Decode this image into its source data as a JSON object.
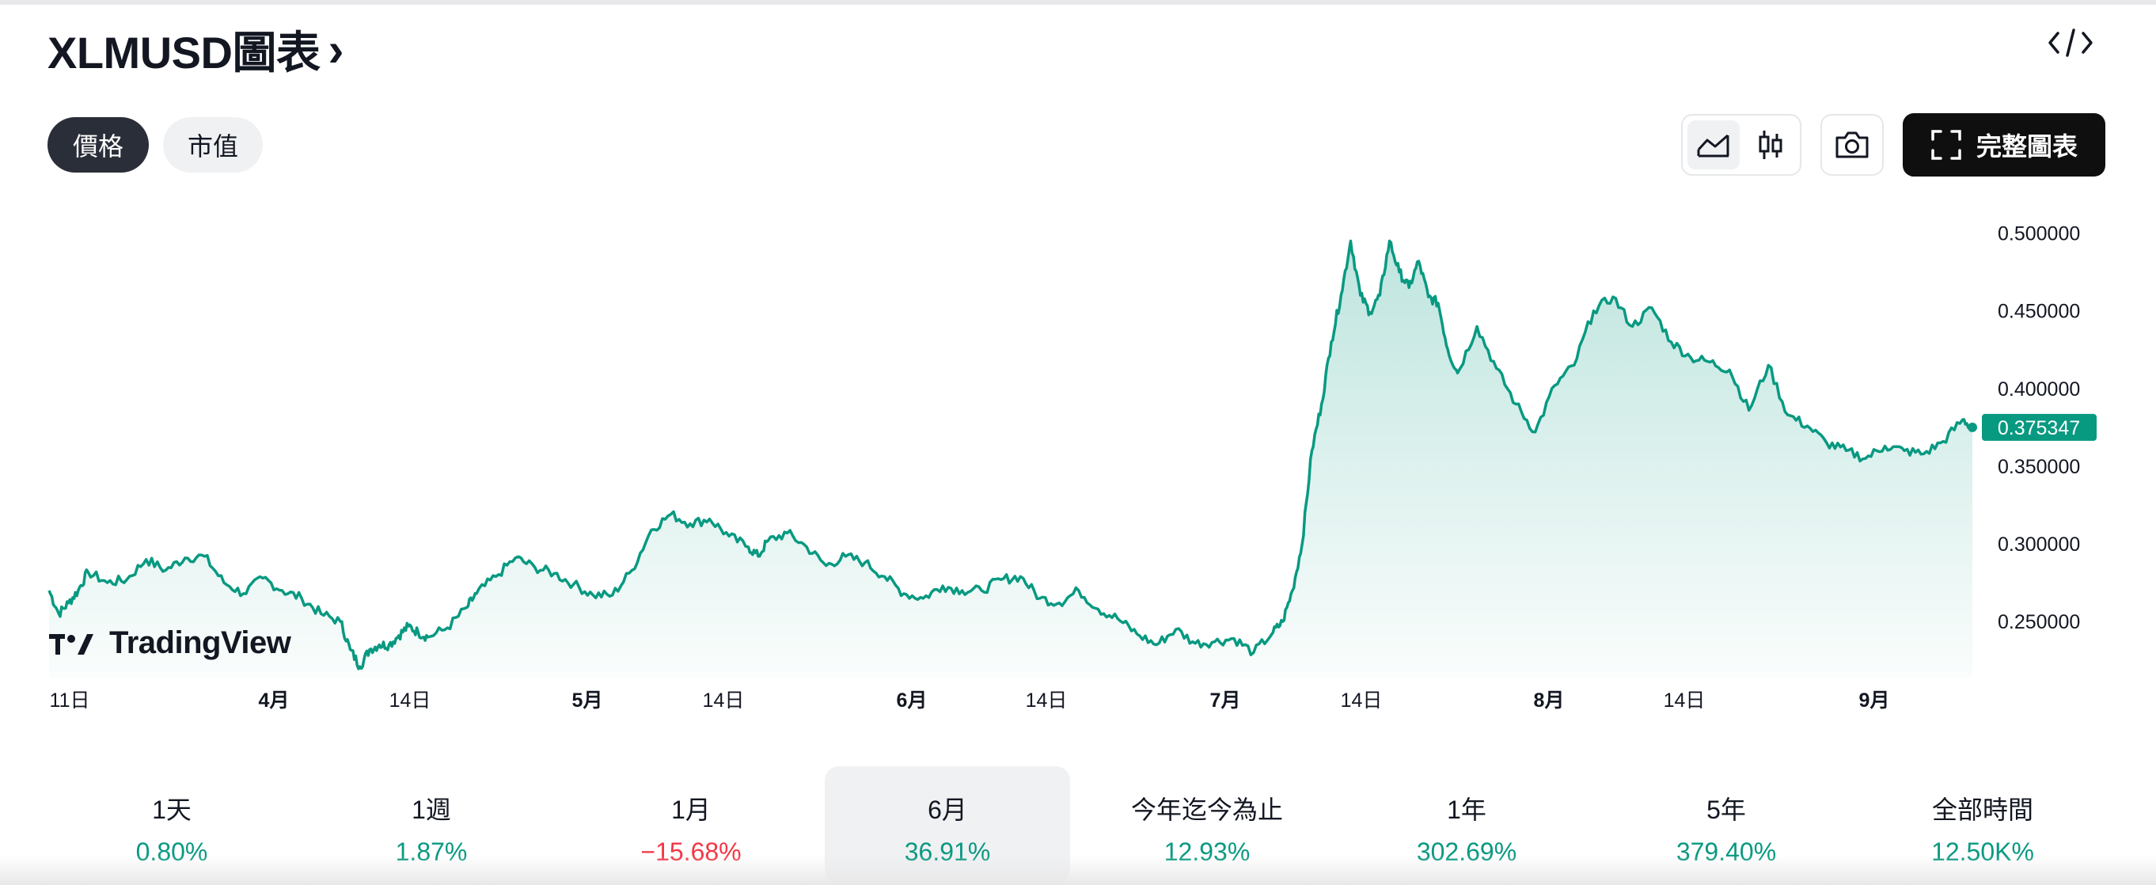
{
  "header": {
    "title": "XLMUSD圖表",
    "chevron": "›"
  },
  "tabs": [
    {
      "label": "價格",
      "active": true
    },
    {
      "label": "市值",
      "active": false
    }
  ],
  "toolbar": {
    "chart_style_icons": [
      "area-chart-icon",
      "candlestick-icon"
    ],
    "camera_icon": "camera-icon",
    "full_chart_label": "完整圖表",
    "embed_icon": "code-icon"
  },
  "watermark": "TradingView",
  "colors": {
    "line": "#089981",
    "positive": "#089981",
    "negative": "#f23645",
    "price_badge": "#089981"
  },
  "chart_data": {
    "type": "area",
    "xlabels": [
      "11日",
      "4月",
      "14日",
      "5月",
      "14日",
      "6月",
      "14日",
      "7月",
      "14日",
      "8月",
      "14日",
      "9月"
    ],
    "yticks": [
      "0.500000",
      "0.450000",
      "0.400000",
      "0.350000",
      "0.300000",
      "0.250000"
    ],
    "ylim": [
      0.218,
      0.51
    ],
    "current_price": "0.375347",
    "grid": false,
    "series": [
      {
        "x": [
          "03-01",
          "03-02",
          "03-03",
          "03-04",
          "03-05",
          "03-07",
          "03-09",
          "03-11",
          "03-13",
          "03-15",
          "03-17",
          "03-19",
          "03-21",
          "03-23",
          "03-25",
          "03-27",
          "03-29",
          "03-31",
          "04-01",
          "04-02",
          "04-03",
          "04-04",
          "04-05",
          "04-06",
          "04-07",
          "04-08",
          "04-09",
          "04-11",
          "04-13",
          "04-14",
          "04-16",
          "04-18",
          "04-20",
          "04-22",
          "04-24",
          "04-26",
          "04-28",
          "04-30",
          "05-02",
          "05-04",
          "05-06",
          "05-08",
          "05-10",
          "05-12",
          "05-13",
          "05-14",
          "05-16",
          "05-18",
          "05-20",
          "05-22",
          "05-24",
          "05-26",
          "05-28",
          "05-30",
          "06-01",
          "06-03",
          "06-05",
          "06-07",
          "06-09",
          "06-11",
          "06-13",
          "06-15",
          "06-17",
          "06-19",
          "06-21",
          "06-23",
          "06-25",
          "06-27",
          "06-29",
          "07-01",
          "07-03",
          "07-05",
          "07-06",
          "07-07",
          "07-08",
          "07-09",
          "07-10",
          "07-11",
          "07-12",
          "07-13",
          "07-14",
          "07-15",
          "07-16",
          "07-17",
          "07-18",
          "07-19",
          "07-20",
          "07-21",
          "07-22",
          "07-23",
          "07-24",
          "07-26",
          "07-28",
          "07-30",
          "08-01",
          "08-03",
          "08-05",
          "08-07",
          "08-09",
          "08-11",
          "08-13",
          "08-15",
          "08-17",
          "08-19",
          "08-21",
          "08-23",
          "08-25",
          "08-27",
          "08-29",
          "08-31",
          "09-02",
          "09-04",
          "09-06",
          "09-08",
          "09-10",
          "09-12",
          "09-14",
          "09-15"
        ],
        "values": [
          0.27,
          0.255,
          0.262,
          0.27,
          0.282,
          0.275,
          0.277,
          0.29,
          0.283,
          0.291,
          0.292,
          0.275,
          0.268,
          0.278,
          0.27,
          0.265,
          0.255,
          0.25,
          0.232,
          0.221,
          0.232,
          0.235,
          0.235,
          0.241,
          0.247,
          0.243,
          0.24,
          0.246,
          0.259,
          0.268,
          0.279,
          0.291,
          0.285,
          0.281,
          0.274,
          0.267,
          0.267,
          0.283,
          0.309,
          0.319,
          0.313,
          0.316,
          0.305,
          0.298,
          0.292,
          0.302,
          0.307,
          0.298,
          0.286,
          0.292,
          0.288,
          0.279,
          0.268,
          0.265,
          0.273,
          0.27,
          0.27,
          0.277,
          0.279,
          0.265,
          0.262,
          0.27,
          0.258,
          0.252,
          0.242,
          0.235,
          0.245,
          0.236,
          0.237,
          0.239,
          0.23,
          0.243,
          0.25,
          0.27,
          0.3,
          0.36,
          0.39,
          0.43,
          0.46,
          0.495,
          0.46,
          0.449,
          0.46,
          0.495,
          0.475,
          0.465,
          0.482,
          0.459,
          0.455,
          0.425,
          0.41,
          0.44,
          0.413,
          0.39,
          0.372,
          0.402,
          0.415,
          0.45,
          0.459,
          0.44,
          0.452,
          0.43,
          0.42,
          0.417,
          0.412,
          0.386,
          0.415,
          0.383,
          0.376,
          0.365,
          0.36,
          0.355,
          0.363,
          0.36,
          0.358,
          0.366,
          0.38,
          0.375
        ]
      }
    ]
  },
  "periods": [
    {
      "label": "1天",
      "value": "0.80%",
      "trend": "pos",
      "selected": false
    },
    {
      "label": "1週",
      "value": "1.87%",
      "trend": "pos",
      "selected": false
    },
    {
      "label": "1月",
      "value": "−15.68%",
      "trend": "neg",
      "selected": false
    },
    {
      "label": "6月",
      "value": "36.91%",
      "trend": "pos",
      "selected": true
    },
    {
      "label": "今年迄今為止",
      "value": "12.93%",
      "trend": "pos",
      "selected": false
    },
    {
      "label": "1年",
      "value": "302.69%",
      "trend": "pos",
      "selected": false
    },
    {
      "label": "5年",
      "value": "379.40%",
      "trend": "pos",
      "selected": false
    },
    {
      "label": "全部時間",
      "value": "12.50K%",
      "trend": "pos",
      "selected": false
    }
  ]
}
